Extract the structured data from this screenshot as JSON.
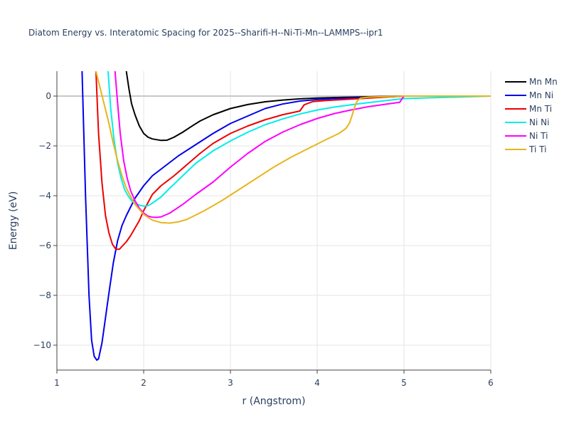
{
  "chart_data": {
    "type": "line",
    "title": "Diatom Energy vs. Interatomic Spacing for 2025--Sharifi-H--Ni-Ti-Mn--LAMMPS--ipr1",
    "xlabel": "r (Angstrom)",
    "ylabel": "Energy (eV)",
    "xlim": [
      1,
      6
    ],
    "ylim": [
      -11,
      1
    ],
    "xticks": [
      1,
      2,
      3,
      4,
      5,
      6
    ],
    "yticks": [
      0,
      -2,
      -4,
      -6,
      -8,
      -10
    ],
    "xtick_labels": [
      "1",
      "2",
      "3",
      "4",
      "5",
      "6"
    ],
    "ytick_labels": [
      "0",
      "−2",
      "−4",
      "−6",
      "−8",
      "−10"
    ],
    "grid": true,
    "legend_position": "top-right",
    "series": [
      {
        "name": "Mn Mn",
        "color": "#000000",
        "x": [
          1.8,
          1.83,
          1.86,
          1.9,
          1.95,
          2.0,
          2.05,
          2.1,
          2.2,
          2.27,
          2.35,
          2.45,
          2.55,
          2.65,
          2.8,
          3.0,
          3.2,
          3.4,
          3.6,
          3.8,
          4.0,
          4.3,
          4.6,
          5.0,
          6.0
        ],
        "y": [
          1.0,
          0.3,
          -0.3,
          -0.75,
          -1.2,
          -1.5,
          -1.65,
          -1.72,
          -1.78,
          -1.77,
          -1.65,
          -1.45,
          -1.22,
          -1.0,
          -0.75,
          -0.5,
          -0.34,
          -0.23,
          -0.16,
          -0.11,
          -0.08,
          -0.05,
          -0.03,
          0.0,
          0.0
        ]
      },
      {
        "name": "Mn Ni",
        "color": "#0000ee",
        "x": [
          1.29,
          1.31,
          1.33,
          1.35,
          1.37,
          1.4,
          1.43,
          1.46,
          1.48,
          1.52,
          1.56,
          1.6,
          1.65,
          1.7,
          1.75,
          1.8,
          1.9,
          2.0,
          2.1,
          2.25,
          2.4,
          2.6,
          2.8,
          3.0,
          3.2,
          3.4,
          3.6,
          3.8,
          4.0,
          4.2,
          4.5,
          4.7,
          5.0,
          6.0
        ],
        "y": [
          1.0,
          -1.5,
          -4.0,
          -6.0,
          -8.0,
          -9.8,
          -10.45,
          -10.6,
          -10.55,
          -9.9,
          -8.9,
          -7.9,
          -6.7,
          -5.8,
          -5.2,
          -4.8,
          -4.1,
          -3.6,
          -3.2,
          -2.8,
          -2.4,
          -1.95,
          -1.5,
          -1.1,
          -0.8,
          -0.5,
          -0.32,
          -0.2,
          -0.14,
          -0.1,
          -0.07,
          -0.05,
          0.0,
          0.0
        ]
      },
      {
        "name": "Mn Ti",
        "color": "#ee0000",
        "x": [
          1.45,
          1.48,
          1.52,
          1.56,
          1.6,
          1.64,
          1.68,
          1.72,
          1.76,
          1.8,
          1.85,
          1.9,
          1.95,
          2.0,
          2.1,
          2.2,
          2.35,
          2.5,
          2.65,
          2.8,
          3.0,
          3.2,
          3.4,
          3.6,
          3.8,
          3.85,
          3.95,
          4.1,
          4.3,
          4.6,
          5.0,
          6.0
        ],
        "y": [
          1.0,
          -1.5,
          -3.5,
          -4.8,
          -5.5,
          -5.95,
          -6.15,
          -6.15,
          -6.0,
          -5.85,
          -5.6,
          -5.3,
          -5.0,
          -4.6,
          -3.95,
          -3.6,
          -3.2,
          -2.75,
          -2.3,
          -1.9,
          -1.5,
          -1.2,
          -0.95,
          -0.75,
          -0.6,
          -0.35,
          -0.22,
          -0.18,
          -0.14,
          -0.08,
          0.0,
          0.0
        ]
      },
      {
        "name": "Ni Ni",
        "color": "#00eeee",
        "x": [
          1.59,
          1.62,
          1.66,
          1.7,
          1.74,
          1.78,
          1.82,
          1.86,
          1.9,
          1.95,
          2.0,
          2.05,
          2.1,
          2.2,
          2.3,
          2.45,
          2.6,
          2.8,
          3.0,
          3.2,
          3.4,
          3.6,
          3.8,
          4.0,
          4.2,
          4.5,
          4.8,
          5.0,
          6.0
        ],
        "y": [
          1.0,
          -0.5,
          -1.8,
          -2.7,
          -3.3,
          -3.75,
          -4.0,
          -4.2,
          -4.3,
          -4.38,
          -4.42,
          -4.4,
          -4.3,
          -4.05,
          -3.7,
          -3.2,
          -2.7,
          -2.2,
          -1.8,
          -1.45,
          -1.15,
          -0.92,
          -0.72,
          -0.56,
          -0.44,
          -0.3,
          -0.18,
          -0.1,
          0.0
        ]
      },
      {
        "name": "Ni Ti",
        "color": "#ff00ff",
        "x": [
          1.67,
          1.7,
          1.73,
          1.77,
          1.81,
          1.85,
          1.9,
          1.95,
          2.0,
          2.05,
          2.1,
          2.15,
          2.2,
          2.3,
          2.45,
          2.6,
          2.8,
          3.0,
          3.2,
          3.4,
          3.6,
          3.8,
          4.0,
          4.2,
          4.4,
          4.6,
          4.8,
          4.95,
          5.0,
          6.0
        ],
        "y": [
          1.0,
          -0.3,
          -1.5,
          -2.6,
          -3.3,
          -3.8,
          -4.2,
          -4.5,
          -4.7,
          -4.82,
          -4.86,
          -4.87,
          -4.85,
          -4.7,
          -4.35,
          -3.95,
          -3.45,
          -2.85,
          -2.3,
          -1.82,
          -1.45,
          -1.15,
          -0.9,
          -0.7,
          -0.55,
          -0.42,
          -0.32,
          -0.25,
          0.0,
          0.0
        ]
      },
      {
        "name": "Ti Ti",
        "color": "#e8b51c",
        "x": [
          1.45,
          1.5,
          1.55,
          1.6,
          1.65,
          1.7,
          1.75,
          1.8,
          1.9,
          2.0,
          2.1,
          2.2,
          2.3,
          2.4,
          2.5,
          2.7,
          2.9,
          3.1,
          3.3,
          3.5,
          3.7,
          3.9,
          4.1,
          4.25,
          4.33,
          4.37,
          4.4,
          4.43,
          4.46,
          4.5,
          4.6,
          4.8,
          5.0,
          6.0
        ],
        "y": [
          1.0,
          0.3,
          -0.4,
          -1.1,
          -1.9,
          -2.6,
          -3.2,
          -3.7,
          -4.35,
          -4.75,
          -4.98,
          -5.08,
          -5.1,
          -5.05,
          -4.95,
          -4.6,
          -4.2,
          -3.75,
          -3.3,
          -2.85,
          -2.45,
          -2.1,
          -1.75,
          -1.5,
          -1.3,
          -1.1,
          -0.8,
          -0.45,
          -0.2,
          -0.08,
          -0.04,
          -0.02,
          0.0,
          0.0
        ]
      }
    ]
  }
}
